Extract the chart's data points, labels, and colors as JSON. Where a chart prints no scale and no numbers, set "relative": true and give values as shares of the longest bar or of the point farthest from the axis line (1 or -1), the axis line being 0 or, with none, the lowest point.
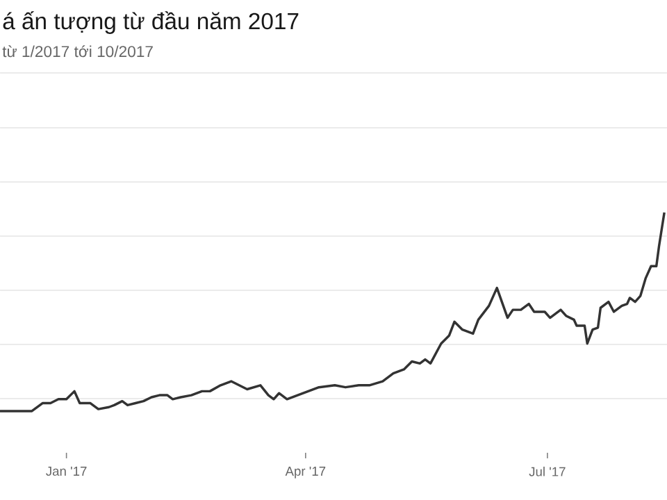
{
  "chart_data": {
    "type": "line",
    "title": "á ấn tượng từ đầu năm 2017",
    "subtitle": "từ 1/2017 tới 10/2017",
    "relative": true,
    "grid": "y",
    "marker": "none",
    "line_style": "solid",
    "xlim": [
      "2016-12-07",
      "2017-08-15"
    ],
    "xticks": [
      {
        "value": "2017-01-01",
        "label": "Jan '17"
      },
      {
        "value": "2017-04-01",
        "label": "Apr '17"
      },
      {
        "value": "2017-07-01",
        "label": "Jul '17"
      }
    ],
    "x": [
      "2016-12-07",
      "2016-12-19",
      "2016-12-23",
      "2016-12-26",
      "2016-12-29",
      "2017-01-01",
      "2017-01-04",
      "2017-01-06",
      "2017-01-10",
      "2017-01-13",
      "2017-01-17",
      "2017-01-19",
      "2017-01-22",
      "2017-01-24",
      "2017-01-27",
      "2017-01-30",
      "2017-02-02",
      "2017-02-05",
      "2017-02-08",
      "2017-02-10",
      "2017-02-13",
      "2017-02-17",
      "2017-02-21",
      "2017-02-24",
      "2017-02-28",
      "2017-03-04",
      "2017-03-07",
      "2017-03-10",
      "2017-03-15",
      "2017-03-18",
      "2017-03-20",
      "2017-03-22",
      "2017-03-25",
      "2017-03-29",
      "2017-04-02",
      "2017-04-06",
      "2017-04-12",
      "2017-04-16",
      "2017-04-21",
      "2017-04-25",
      "2017-04-30",
      "2017-05-04",
      "2017-05-08",
      "2017-05-11",
      "2017-05-14",
      "2017-05-16",
      "2017-05-18",
      "2017-05-22",
      "2017-05-25",
      "2017-05-27",
      "2017-05-30",
      "2017-06-03",
      "2017-06-05",
      "2017-06-09",
      "2017-06-12",
      "2017-06-16",
      "2017-06-18",
      "2017-06-21",
      "2017-06-24",
      "2017-06-26",
      "2017-06-30",
      "2017-07-02",
      "2017-07-06",
      "2017-07-08",
      "2017-07-11",
      "2017-07-12",
      "2017-07-15",
      "2017-07-16",
      "2017-07-18",
      "2017-07-20",
      "2017-07-21",
      "2017-07-24",
      "2017-07-26",
      "2017-07-29",
      "2017-07-31",
      "2017-08-01",
      "2017-08-03",
      "2017-08-05",
      "2017-08-07",
      "2017-08-09",
      "2017-08-11",
      "2017-08-12",
      "2017-08-14"
    ],
    "series": [
      {
        "color": "#333333",
        "values": [
          0,
          0,
          0.04,
          0.04,
          0.06,
          0.06,
          0.1,
          0.04,
          0.04,
          0.01,
          0.02,
          0.03,
          0.05,
          0.03,
          0.04,
          0.05,
          0.07,
          0.08,
          0.08,
          0.06,
          0.07,
          0.08,
          0.1,
          0.1,
          0.13,
          0.15,
          0.13,
          0.11,
          0.13,
          0.08,
          0.06,
          0.09,
          0.06,
          0.08,
          0.1,
          0.12,
          0.13,
          0.12,
          0.13,
          0.13,
          0.15,
          0.19,
          0.21,
          0.25,
          0.24,
          0.26,
          0.24,
          0.34,
          0.38,
          0.45,
          0.41,
          0.39,
          0.46,
          0.53,
          0.62,
          0.47,
          0.51,
          0.51,
          0.54,
          0.5,
          0.5,
          0.47,
          0.51,
          0.48,
          0.46,
          0.43,
          0.43,
          0.34,
          0.41,
          0.42,
          0.52,
          0.55,
          0.5,
          0.53,
          0.54,
          0.57,
          0.55,
          0.58,
          0.67,
          0.73,
          0.73,
          0.83,
          1.0
        ]
      }
    ]
  }
}
